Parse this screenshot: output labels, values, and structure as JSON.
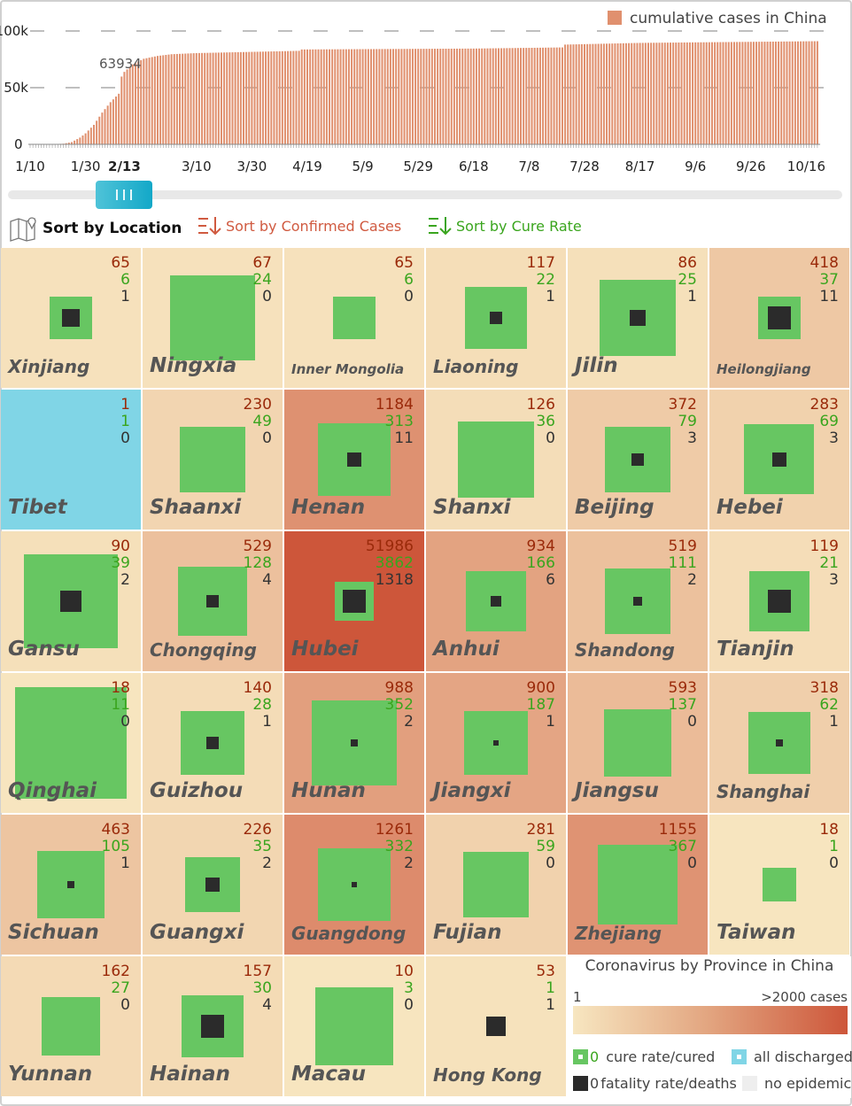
{
  "chart_data": {
    "type": "bar",
    "legend": "cumulative cases in China",
    "legend_position": "top-right",
    "bar_color": "#e0906e",
    "ylim": [
      0,
      100000
    ],
    "y_ticks": [
      "0",
      "50k",
      "100k"
    ],
    "y_tick_values": [
      0,
      50000,
      100000
    ],
    "grid": "dashed horizontal",
    "x_tick_labels": [
      "1/10",
      "1/30",
      "2/13",
      "3/10",
      "3/30",
      "4/19",
      "5/9",
      "5/29",
      "6/18",
      "7/8",
      "7/28",
      "8/17",
      "9/6",
      "9/26",
      "10/16"
    ],
    "x_range": [
      "2020-01-10",
      "2020-10-20"
    ],
    "selected_date": "2/13",
    "selected_value_label": "63934",
    "keypoints": [
      [
        "2020-01-10",
        41
      ],
      [
        "2020-01-19",
        200
      ],
      [
        "2020-01-22",
        580
      ],
      [
        "2020-01-25",
        1975
      ],
      [
        "2020-01-28",
        5974
      ],
      [
        "2020-01-30",
        9692
      ],
      [
        "2020-02-02",
        17205
      ],
      [
        "2020-02-05",
        28018
      ],
      [
        "2020-02-08",
        37198
      ],
      [
        "2020-02-11",
        44653
      ],
      [
        "2020-02-12",
        59804
      ],
      [
        "2020-02-13",
        63934
      ],
      [
        "2020-02-16",
        70500
      ],
      [
        "2020-02-20",
        75500
      ],
      [
        "2020-02-25",
        78000
      ],
      [
        "2020-03-01",
        79500
      ],
      [
        "2020-03-10",
        80500
      ],
      [
        "2020-04-16",
        82500
      ],
      [
        "2020-04-17",
        83700
      ],
      [
        "2020-06-18",
        84500
      ],
      [
        "2020-07-20",
        85500
      ],
      [
        "2020-07-21",
        88000
      ],
      [
        "2020-08-17",
        89500
      ],
      [
        "2020-10-20",
        91000
      ]
    ]
  },
  "slider": {
    "value": "2/13"
  },
  "sort": {
    "location": "Sort by Location",
    "confirmed": "Sort by Confirmed Cases",
    "cure": "Sort by Cure Rate"
  },
  "colors": {
    "low": "#f7e6c0",
    "high": "#cd563a",
    "cured": "#67c662",
    "deaths": "#2b2b2b",
    "discharged": "#80d5e6",
    "no_epidemic": "#eeeeee"
  },
  "provinces": [
    {
      "name": "Xinjiang",
      "confirmed": 65,
      "cured": 6,
      "deaths": 1
    },
    {
      "name": "Ningxia",
      "confirmed": 67,
      "cured": 24,
      "deaths": 0
    },
    {
      "name": "Inner Mongolia",
      "confirmed": 65,
      "cured": 6,
      "deaths": 0
    },
    {
      "name": "Liaoning",
      "confirmed": 117,
      "cured": 22,
      "deaths": 1
    },
    {
      "name": "Jilin",
      "confirmed": 86,
      "cured": 25,
      "deaths": 1
    },
    {
      "name": "Heilongjiang",
      "confirmed": 418,
      "cured": 37,
      "deaths": 11
    },
    {
      "name": "Tibet",
      "confirmed": 1,
      "cured": 1,
      "deaths": 0,
      "all_discharged": true
    },
    {
      "name": "Shaanxi",
      "confirmed": 230,
      "cured": 49,
      "deaths": 0
    },
    {
      "name": "Henan",
      "confirmed": 1184,
      "cured": 313,
      "deaths": 11
    },
    {
      "name": "Shanxi",
      "confirmed": 126,
      "cured": 36,
      "deaths": 0
    },
    {
      "name": "Beijing",
      "confirmed": 372,
      "cured": 79,
      "deaths": 3
    },
    {
      "name": "Hebei",
      "confirmed": 283,
      "cured": 69,
      "deaths": 3
    },
    {
      "name": "Gansu",
      "confirmed": 90,
      "cured": 39,
      "deaths": 2
    },
    {
      "name": "Chongqing",
      "confirmed": 529,
      "cured": 128,
      "deaths": 4
    },
    {
      "name": "Hubei",
      "confirmed": 51986,
      "cured": 3862,
      "deaths": 1318
    },
    {
      "name": "Anhui",
      "confirmed": 934,
      "cured": 166,
      "deaths": 6
    },
    {
      "name": "Shandong",
      "confirmed": 519,
      "cured": 111,
      "deaths": 2
    },
    {
      "name": "Tianjin",
      "confirmed": 119,
      "cured": 21,
      "deaths": 3
    },
    {
      "name": "Qinghai",
      "confirmed": 18,
      "cured": 11,
      "deaths": 0
    },
    {
      "name": "Guizhou",
      "confirmed": 140,
      "cured": 28,
      "deaths": 1
    },
    {
      "name": "Hunan",
      "confirmed": 988,
      "cured": 352,
      "deaths": 2
    },
    {
      "name": "Jiangxi",
      "confirmed": 900,
      "cured": 187,
      "deaths": 1
    },
    {
      "name": "Jiangsu",
      "confirmed": 593,
      "cured": 137,
      "deaths": 0
    },
    {
      "name": "Shanghai",
      "confirmed": 318,
      "cured": 62,
      "deaths": 1
    },
    {
      "name": "Sichuan",
      "confirmed": 463,
      "cured": 105,
      "deaths": 1
    },
    {
      "name": "Guangxi",
      "confirmed": 226,
      "cured": 35,
      "deaths": 2
    },
    {
      "name": "Guangdong",
      "confirmed": 1261,
      "cured": 332,
      "deaths": 2
    },
    {
      "name": "Fujian",
      "confirmed": 281,
      "cured": 59,
      "deaths": 0
    },
    {
      "name": "Zhejiang",
      "confirmed": 1155,
      "cured": 367,
      "deaths": 0
    },
    {
      "name": "Taiwan",
      "confirmed": 18,
      "cured": 1,
      "deaths": 0
    },
    {
      "name": "Yunnan",
      "confirmed": 162,
      "cured": 27,
      "deaths": 0
    },
    {
      "name": "Hainan",
      "confirmed": 157,
      "cured": 30,
      "deaths": 4
    },
    {
      "name": "Macau",
      "confirmed": 10,
      "cured": 3,
      "deaths": 0
    },
    {
      "name": "Hong Kong",
      "confirmed": 53,
      "cured": 1,
      "deaths": 1
    }
  ],
  "legend": {
    "title": "Coronavirus by Province in China",
    "min": "1",
    "max": ">2000 cases",
    "cured_num": "0",
    "cured": "cure rate/cured",
    "discharged": "all discharged",
    "deaths_num": "0",
    "deaths": "fatality rate/deaths",
    "no_epidemic": "no epidemic"
  }
}
